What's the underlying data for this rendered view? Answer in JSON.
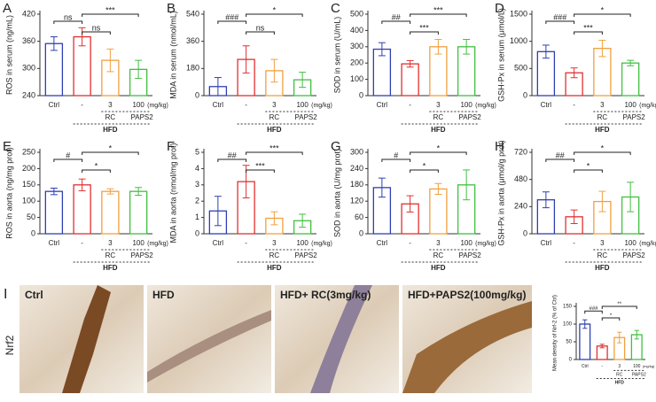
{
  "chart_data": [
    {
      "type": "bar",
      "label": "A",
      "y_label": "ROS in serum (ng/mL)",
      "categories": [
        "Ctrl",
        "-",
        "3",
        "100"
      ],
      "dose_unit": "(mg/kg)",
      "subgroups": [
        "RC",
        "PAPS2"
      ],
      "group": "HFD",
      "colors": [
        "#3040b0",
        "#e03030",
        "#f0a040",
        "#40c040"
      ],
      "values": [
        355,
        370,
        318,
        298
      ],
      "errors": [
        15,
        20,
        25,
        20
      ],
      "ylim": [
        240,
        420
      ],
      "yticks": [
        240,
        300,
        360,
        420
      ],
      "annotations": [
        "ns",
        "ns",
        "***"
      ]
    },
    {
      "type": "bar",
      "label": "B",
      "y_label": "MDA in serum (nmol/mL)",
      "categories": [
        "Ctrl",
        "-",
        "3",
        "100"
      ],
      "dose_unit": "(mg/kg)",
      "subgroups": [
        "RC",
        "PAPS2"
      ],
      "group": "HFD",
      "colors": [
        "#3040b0",
        "#e03030",
        "#f0a040",
        "#40c040"
      ],
      "values": [
        60,
        240,
        165,
        105
      ],
      "errors": [
        60,
        90,
        75,
        50
      ],
      "ylim": [
        0,
        540
      ],
      "yticks": [
        0,
        180,
        360,
        540
      ],
      "annotations": [
        "###",
        "ns",
        "*"
      ]
    },
    {
      "type": "bar",
      "label": "C",
      "y_label": "SOD in serum (U/mL)",
      "categories": [
        "Ctrl",
        "-",
        "3",
        "100"
      ],
      "dose_unit": "(mg/kg)",
      "subgroups": [
        "RC",
        "PAPS2"
      ],
      "group": "HFD",
      "colors": [
        "#3040b0",
        "#e03030",
        "#f0a040",
        "#40c040"
      ],
      "values": [
        285,
        195,
        300,
        300
      ],
      "errors": [
        40,
        20,
        45,
        45
      ],
      "ylim": [
        0,
        500
      ],
      "yticks": [
        0,
        100,
        200,
        300,
        400,
        500
      ],
      "annotations": [
        "##",
        "***",
        "***"
      ]
    },
    {
      "type": "bar",
      "label": "D",
      "y_label": "GSH-Px in serum (μmol/L)",
      "categories": [
        "Ctrl",
        "-",
        "3",
        "100"
      ],
      "dose_unit": "(mg/kg)",
      "subgroups": [
        "RC",
        "PAPS2"
      ],
      "group": "HFD",
      "colors": [
        "#3040b0",
        "#e03030",
        "#f0a040",
        "#40c040"
      ],
      "values": [
        810,
        420,
        870,
        600
      ],
      "errors": [
        120,
        90,
        150,
        50
      ],
      "ylim": [
        0,
        1500
      ],
      "yticks": [
        0,
        500,
        1000,
        1500
      ],
      "annotations": [
        "###",
        "***",
        "*"
      ]
    },
    {
      "type": "bar",
      "label": "E",
      "y_label": "ROS in aorta (ng/mg prot)",
      "categories": [
        "Ctrl",
        "-",
        "3",
        "100"
      ],
      "dose_unit": "(mg/kg)",
      "subgroups": [
        "RC",
        "PAPS2"
      ],
      "group": "HFD",
      "colors": [
        "#3040b0",
        "#e03030",
        "#f0a040",
        "#40c040"
      ],
      "values": [
        130,
        150,
        130,
        130
      ],
      "errors": [
        10,
        18,
        8,
        12
      ],
      "ylim": [
        0,
        250
      ],
      "yticks": [
        0,
        50,
        100,
        150,
        200,
        250
      ],
      "annotations": [
        "#",
        "*",
        "*"
      ]
    },
    {
      "type": "bar",
      "label": "F",
      "y_label": "MDA in aorta (nmol/mg prot)",
      "categories": [
        "Ctrl",
        "-",
        "3",
        "100"
      ],
      "dose_unit": "(mg/kg)",
      "subgroups": [
        "RC",
        "PAPS2"
      ],
      "group": "HFD",
      "colors": [
        "#3040b0",
        "#e03030",
        "#f0a040",
        "#40c040"
      ],
      "values": [
        1.4,
        3.2,
        0.95,
        0.8
      ],
      "errors": [
        0.9,
        1.0,
        0.4,
        0.4
      ],
      "ylim": [
        0,
        5
      ],
      "yticks": [
        0,
        1,
        2,
        3,
        4,
        5
      ],
      "annotations": [
        "##",
        "***",
        "***"
      ]
    },
    {
      "type": "bar",
      "label": "G",
      "y_label": "SOD in aorta (U/mg prot)",
      "categories": [
        "Ctrl",
        "-",
        "3",
        "100"
      ],
      "dose_unit": "(mg/kg)",
      "subgroups": [
        "RC",
        "PAPS2"
      ],
      "group": "HFD",
      "colors": [
        "#3040b0",
        "#e03030",
        "#f0a040",
        "#40c040"
      ],
      "values": [
        170,
        110,
        165,
        180
      ],
      "errors": [
        35,
        30,
        20,
        55
      ],
      "ylim": [
        0,
        300
      ],
      "yticks": [
        0,
        60,
        120,
        180,
        240,
        300
      ],
      "annotations": [
        "#",
        "*",
        "*"
      ]
    },
    {
      "type": "bar",
      "label": "H",
      "y_label": "GSH-Px in aorta (μmol/g prot)",
      "categories": [
        "Ctrl",
        "-",
        "3",
        "100"
      ],
      "dose_unit": "(mg/kg)",
      "subgroups": [
        "RC",
        "PAPS2"
      ],
      "group": "HFD",
      "colors": [
        "#3040b0",
        "#e03030",
        "#f0a040",
        "#40c040"
      ],
      "values": [
        300,
        150,
        285,
        325
      ],
      "errors": [
        70,
        60,
        90,
        130
      ],
      "ylim": [
        0,
        720
      ],
      "yticks": [
        0,
        240,
        480,
        720
      ],
      "annotations": [
        "##",
        "*",
        "*"
      ]
    },
    {
      "type": "bar",
      "y_label": "Mean density of Nrf-2 (% of Ctrl)",
      "categories": [
        "Ctrl",
        "-",
        "3",
        "100"
      ],
      "dose_unit": "(mg/kg)",
      "subgroups": [
        "RC",
        "PAPS2"
      ],
      "group": "HFD",
      "colors": [
        "#3040b0",
        "#e03030",
        "#f0a040",
        "#40c040"
      ],
      "values": [
        100,
        38,
        62,
        70
      ],
      "errors": [
        12,
        5,
        15,
        12
      ],
      "ylim": [
        0,
        150
      ],
      "yticks": [
        0,
        50,
        100,
        150
      ],
      "annotations": [
        "###",
        "*",
        "**"
      ]
    }
  ],
  "micrographs": {
    "label": "I",
    "row_label": "Nrf2",
    "captions": [
      "Ctrl",
      "HFD",
      "HFD+ RC(3mg/kg)",
      "HFD+PAPS2(100mg/kg)"
    ]
  }
}
